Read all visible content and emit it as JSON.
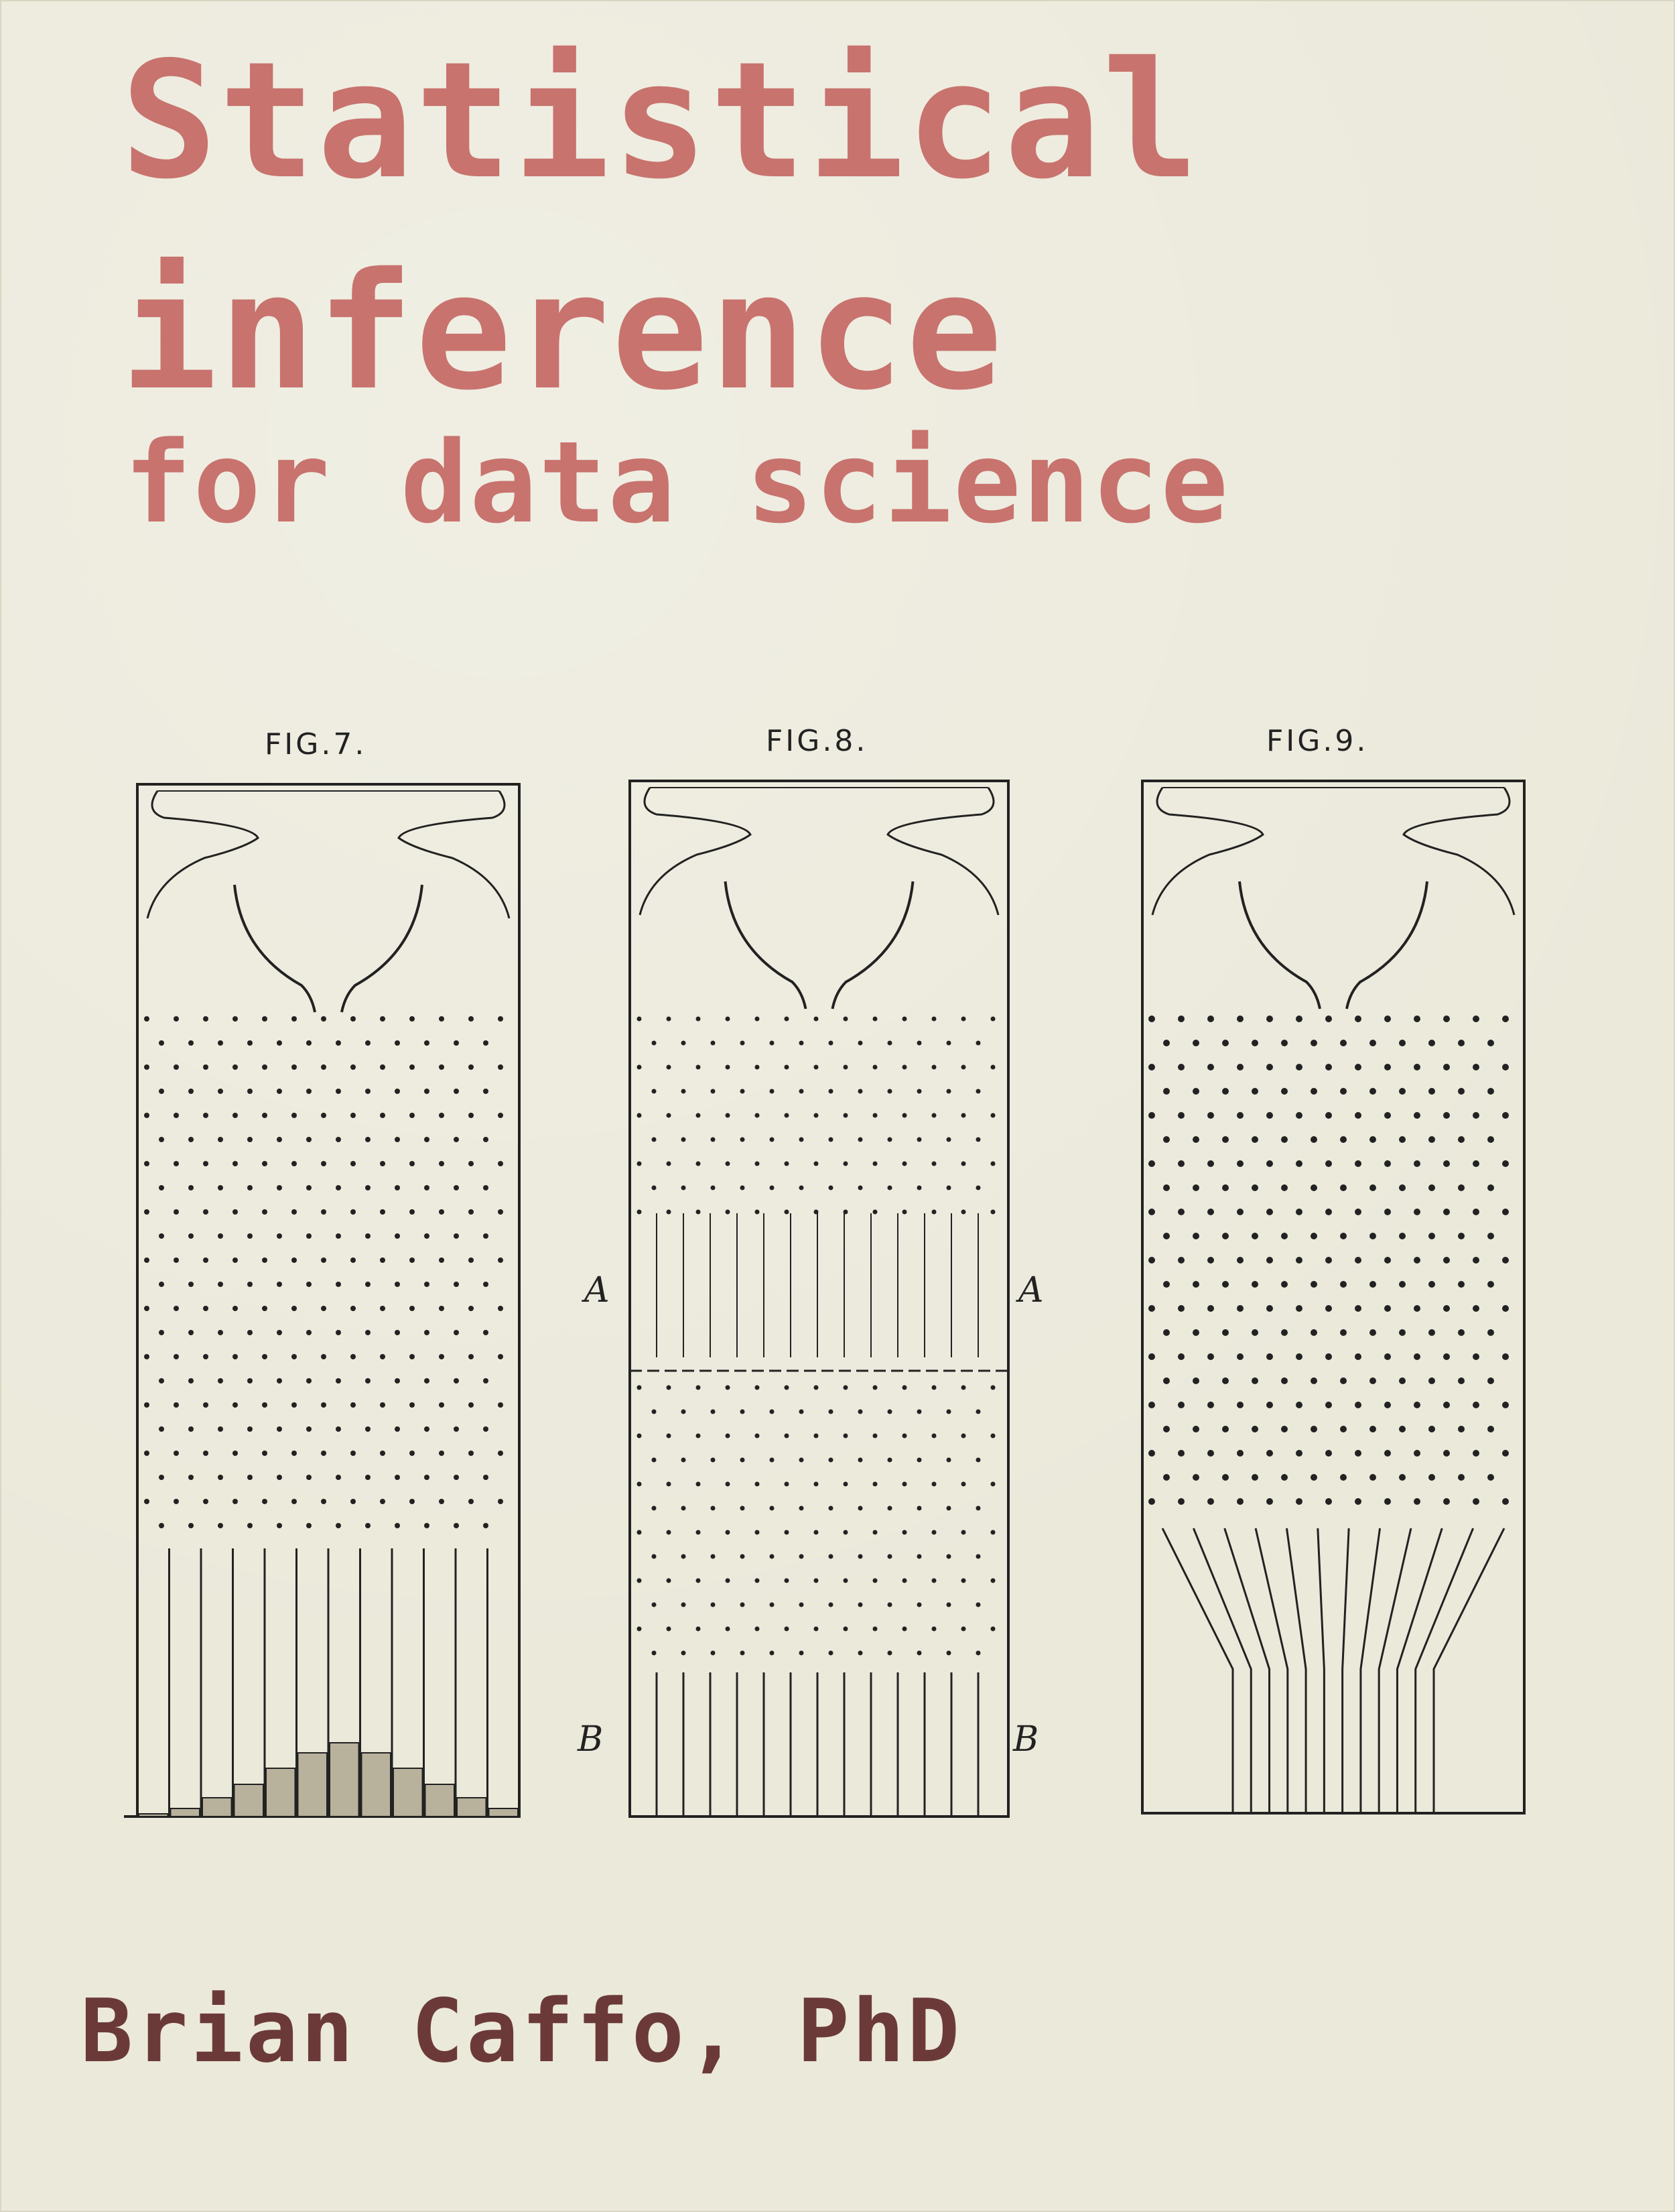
{
  "cover": {
    "title_line1": "Statistical",
    "title_line2": "inference",
    "title_line3": "for data science",
    "author": "Brian Caffo, PhD"
  },
  "illustration": {
    "figures": [
      {
        "label": "FIG.7.",
        "icon": "galton-board-histogram-icon"
      },
      {
        "label": "FIG.8.",
        "icon": "galton-board-sections-icon"
      },
      {
        "label": "FIG.9.",
        "icon": "galton-board-funnel-icon"
      }
    ],
    "markers": {
      "a_left": "A",
      "a_right": "A",
      "b_left": "B",
      "b_right": "B"
    }
  },
  "colors": {
    "background": "#ebe9da",
    "title": "#c8736e",
    "author": "#6b3a38",
    "ink": "#222222"
  }
}
